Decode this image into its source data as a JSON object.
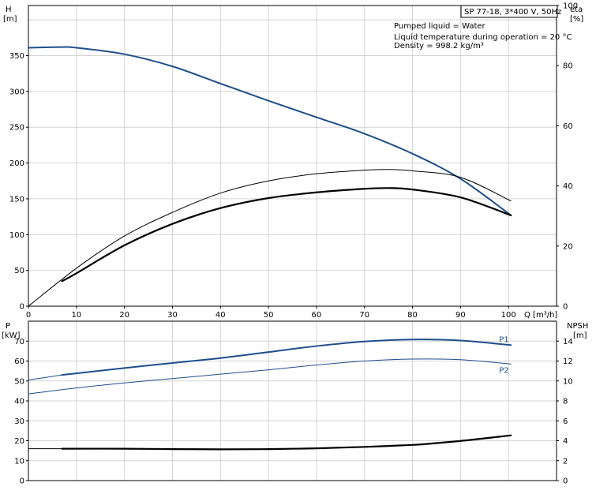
{
  "header": {
    "model_label": "SP 77-18, 3*400 V, 50Hz",
    "info_lines": [
      "Pumped liquid = Water",
      "Liquid temperature during operation = 20 °C",
      "Density = 998.2 kg/m³"
    ]
  },
  "colors": {
    "blue": "#1f4e8c",
    "black": "#000000",
    "grid": "#d4d4d4"
  },
  "chart_data": [
    {
      "type": "line",
      "name": "head-efficiency",
      "left_axis": {
        "label_line1": "H",
        "label_line2": "[m]",
        "ylim": [
          0,
          420
        ],
        "ticks": [
          0,
          50,
          100,
          150,
          200,
          250,
          300,
          350
        ]
      },
      "right_axis": {
        "label_line1": "eta",
        "label_line2": "[%]",
        "ylim": [
          0,
          100
        ],
        "ticks": [
          0,
          20,
          40,
          60,
          80,
          100
        ]
      },
      "x_axis": {
        "label": "Q [m³/h]",
        "xlim": [
          0,
          110
        ],
        "ticks": [
          0,
          10,
          20,
          30,
          40,
          50,
          60,
          70,
          80,
          90,
          100
        ]
      },
      "grid": true,
      "series": [
        {
          "axis": "left",
          "color": "#1f4e8c",
          "width": 2,
          "x": [
            0,
            7,
            10,
            20,
            30,
            40,
            50,
            60,
            70,
            80,
            90,
            100.5
          ],
          "y": [
            361,
            362,
            361,
            352,
            335,
            311,
            287,
            264,
            241,
            213,
            178,
            127
          ]
        },
        {
          "axis": "left",
          "color": "#000000",
          "width": 1,
          "x": [
            0,
            10,
            20,
            30,
            40,
            50,
            60,
            70,
            75,
            80,
            90,
            100.5
          ],
          "y": [
            0,
            53,
            98,
            131,
            158,
            175,
            185,
            190,
            191,
            189,
            180,
            147
          ]
        },
        {
          "axis": "left",
          "color": "#000000",
          "width": 2.2,
          "x": [
            7,
            10,
            20,
            30,
            40,
            50,
            60,
            70,
            75,
            80,
            90,
            100.5
          ],
          "y": [
            35,
            46,
            85,
            115,
            137,
            151,
            159,
            164,
            165,
            163,
            152,
            127
          ]
        }
      ]
    },
    {
      "type": "line",
      "name": "power-npsh",
      "left_axis": {
        "label_line1": "P",
        "label_line2": "[kW]",
        "ylim": [
          0,
          80
        ],
        "ticks": [
          0,
          10,
          20,
          30,
          40,
          50,
          60,
          70
        ]
      },
      "right_axis": {
        "label_line1": "NPSH",
        "label_line2": "[m]",
        "ylim": [
          0,
          16
        ],
        "ticks": [
          0,
          2,
          4,
          6,
          8,
          10,
          12,
          14
        ]
      },
      "x_axis": {
        "xlim": [
          0,
          110
        ],
        "ticks": [
          0,
          10,
          20,
          30,
          40,
          50,
          60,
          70,
          80,
          90,
          100
        ]
      },
      "grid": true,
      "series": [
        {
          "axis": "left",
          "color": "#1f4e8c",
          "width": 1,
          "label": "",
          "x": [
            0,
            7
          ],
          "y": [
            50.5,
            53
          ]
        },
        {
          "axis": "left",
          "color": "#1f4e8c",
          "width": 2,
          "label": "P1",
          "x": [
            7,
            20,
            30,
            40,
            50,
            60,
            70,
            80,
            90,
            100.5
          ],
          "y": [
            53,
            56.5,
            59,
            61.5,
            64.5,
            67.5,
            69.8,
            70.8,
            70.3,
            68
          ]
        },
        {
          "axis": "left",
          "color": "#1f4e8c",
          "width": 1,
          "label": "P2",
          "x": [
            0,
            10,
            20,
            30,
            40,
            50,
            60,
            70,
            80,
            90,
            100.5
          ],
          "y": [
            43.5,
            46.5,
            49,
            51.2,
            53.4,
            55.6,
            58,
            60,
            61,
            60.7,
            58.5
          ]
        },
        {
          "axis": "left",
          "color": "#000000",
          "width": 1,
          "label": "",
          "x": [
            0,
            7
          ],
          "y": [
            16,
            16
          ]
        },
        {
          "axis": "left",
          "color": "#000000",
          "width": 2.2,
          "label": "",
          "x": [
            7,
            20,
            30,
            40,
            50,
            60,
            70,
            80,
            85,
            90,
            95,
            100.5
          ],
          "y": [
            16,
            16,
            15.8,
            15.7,
            15.8,
            16.2,
            16.9,
            17.9,
            18.8,
            19.9,
            21.2,
            22.7
          ]
        }
      ]
    }
  ]
}
